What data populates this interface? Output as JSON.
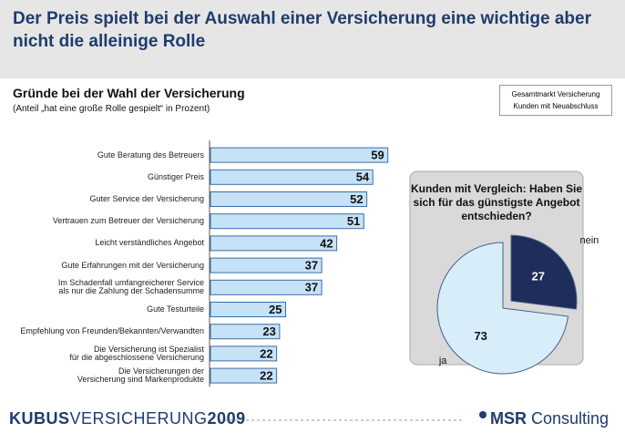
{
  "header": {
    "title": "Der Preis spielt bei der Auswahl einer Versicherung eine wichtige aber nicht die alleinige Rolle"
  },
  "box": {
    "lines": [
      "Gesamtmarkt Versicherung",
      "Kunden mit Neuabschluss"
    ]
  },
  "footer": {
    "brand": [
      "KUBUS",
      "VERSICHERUNG",
      "2009"
    ],
    "company": [
      "MSR",
      "Consulting"
    ]
  },
  "chart_data": [
    {
      "type": "bar",
      "orientation": "horizontal",
      "title": "Gründe bei der Wahl der Versicherung",
      "subtitle": "(Anteil „hat eine große Rolle gespielt“ in Prozent)",
      "categories": [
        "Gute Beratung des Betreuers",
        "Günstiger Preis",
        "Guter Service der Versicherung",
        "Vertrauen zum Betreuer der Versicherung",
        "Leicht verständliches Angebot",
        "Gute Erfahrungen mit der Versicherung",
        "Im Schadenfall umfangreicherer Service\nals nur die Zahlung der Schadensumme",
        "Gute Testurteile",
        "Empfehlung von Freunden/Bekannten/Verwandten",
        "Die Versicherung ist Spezialist\nfür die abgeschlossene Versicherung",
        "Die Versicherungen der\nVersicherung sind Markenprodukte"
      ],
      "values": [
        59,
        54,
        52,
        51,
        42,
        37,
        37,
        25,
        23,
        22,
        22
      ],
      "color": "#c6e2f7",
      "edge_color": "#3a6ea8",
      "xlim": [
        0,
        60
      ]
    },
    {
      "type": "pie",
      "title": "Kunden mit Vergleich: Haben Sie sich für das günstigste Angebot entschieden?",
      "categories": [
        "nein",
        "ja"
      ],
      "values": [
        27,
        73
      ],
      "colors": [
        "#1f2d5a",
        "#d8edfa"
      ]
    }
  ]
}
